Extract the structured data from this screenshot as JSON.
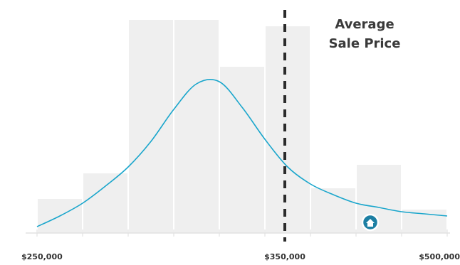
{
  "chart_data": {
    "type": "histogram",
    "values": [
      16,
      28,
      100,
      100,
      78,
      97,
      21,
      32,
      11
    ],
    "color": "#efefef",
    "ylim": [
      0,
      100
    ],
    "x_labels": [
      "$250,000",
      "$350,000",
      "$500,000"
    ],
    "curve": {
      "color": "#1aa6cc",
      "values": [
        3,
        8,
        14,
        22,
        31,
        43,
        58,
        70,
        71,
        59,
        44,
        31,
        23,
        18,
        14,
        12,
        10,
        9,
        8
      ]
    },
    "annotation": [
      "Average",
      "Sale Price"
    ]
  }
}
